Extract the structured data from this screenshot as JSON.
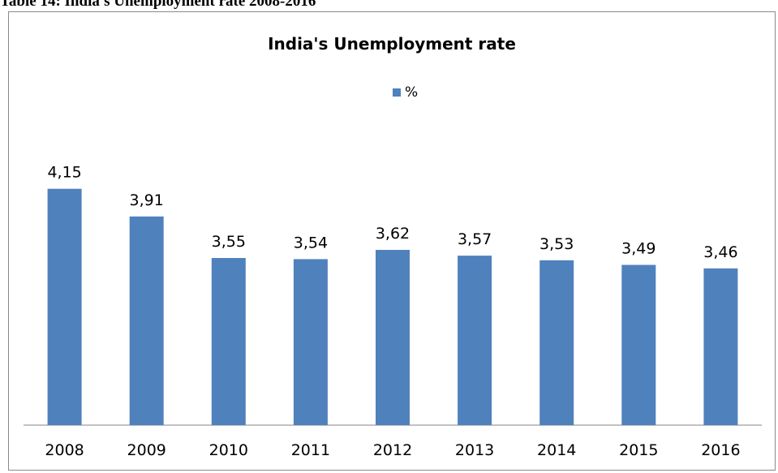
{
  "caption": "Table 14: India's Unemployment rate 2008-2016",
  "chart_data": {
    "type": "bar",
    "title": "India's Unemployment rate",
    "categories": [
      "2008",
      "2009",
      "2010",
      "2011",
      "2012",
      "2013",
      "2014",
      "2015",
      "2016"
    ],
    "series": [
      {
        "name": "%",
        "values": [
          4.15,
          3.91,
          3.55,
          3.54,
          3.62,
          3.57,
          3.53,
          3.49,
          3.46
        ],
        "labels": [
          "4,15",
          "3,91",
          "3,55",
          "3,54",
          "3,62",
          "3,57",
          "3,53",
          "3,49",
          "3,46"
        ]
      }
    ],
    "xlabel": "",
    "ylabel": "",
    "ylim": [
      2.1,
      4.5
    ],
    "grid": false,
    "legend_position": "top",
    "bar_color": "#4f81bd",
    "axis_color": "#868686"
  }
}
